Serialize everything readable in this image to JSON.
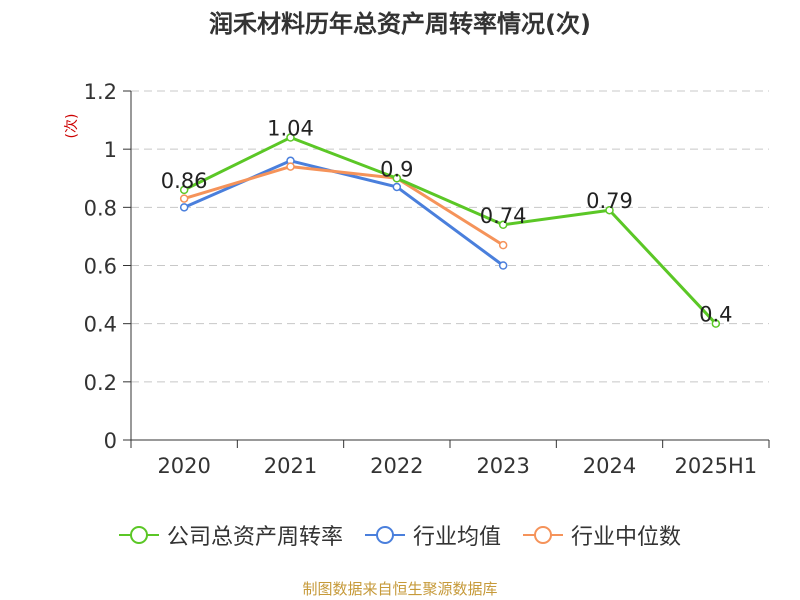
{
  "chart_data": {
    "type": "line",
    "title": "润禾材料历年总资产周转率情况(次)",
    "ylabel": "(次)",
    "xlabel": "",
    "categories": [
      "2020",
      "2021",
      "2022",
      "2023",
      "2024",
      "2025H1"
    ],
    "ylim": [
      0,
      1.2
    ],
    "yticks": [
      "0",
      "0.2",
      "0.4",
      "0.6",
      "0.8",
      "1",
      "1.2"
    ],
    "grid": true,
    "legend_position": "bottom",
    "series": [
      {
        "name": "公司总资产周转率",
        "color": "#5bc726",
        "values": [
          0.86,
          1.04,
          0.9,
          0.74,
          0.79,
          0.4
        ],
        "labels": [
          "0.86",
          "1.04",
          "0.9",
          "0.74",
          "0.79",
          "0.4"
        ]
      },
      {
        "name": "行业均值",
        "color": "#4a7fdc",
        "values": [
          0.8,
          0.96,
          0.87,
          0.6,
          null,
          null
        ]
      },
      {
        "name": "行业中位数",
        "color": "#f5935a",
        "values": [
          0.83,
          0.94,
          0.9,
          0.67,
          null,
          null
        ]
      }
    ]
  },
  "source": "制图数据来自恒生聚源数据库"
}
